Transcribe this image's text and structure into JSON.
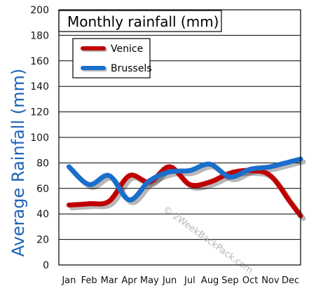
{
  "chart_data": {
    "type": "line",
    "title": "Monthly rainfall (mm)",
    "xlabel": "",
    "ylabel": "Average Rainfall (mm)",
    "categories": [
      "Jan",
      "Feb",
      "Mar",
      "Apr",
      "May",
      "Jun",
      "Jul",
      "Aug",
      "Sep",
      "Oct",
      "Nov",
      "Dec"
    ],
    "ylim": [
      0,
      200
    ],
    "yticks": [
      0,
      20,
      40,
      60,
      80,
      100,
      120,
      140,
      160,
      180,
      200
    ],
    "grid": true,
    "legend_position": "top-left",
    "series": [
      {
        "name": "Venice",
        "color": "#c00000",
        "values": [
          47,
          48,
          50,
          70,
          65,
          77,
          63,
          65,
          72,
          74,
          70,
          49
        ]
      },
      {
        "name": "Brussels",
        "color": "#1a6ecc",
        "values": [
          77,
          63,
          70,
          51,
          66,
          73,
          74,
          79,
          69,
          75,
          77,
          81
        ]
      }
    ],
    "watermark": "© 2WeekBackPack.com"
  }
}
